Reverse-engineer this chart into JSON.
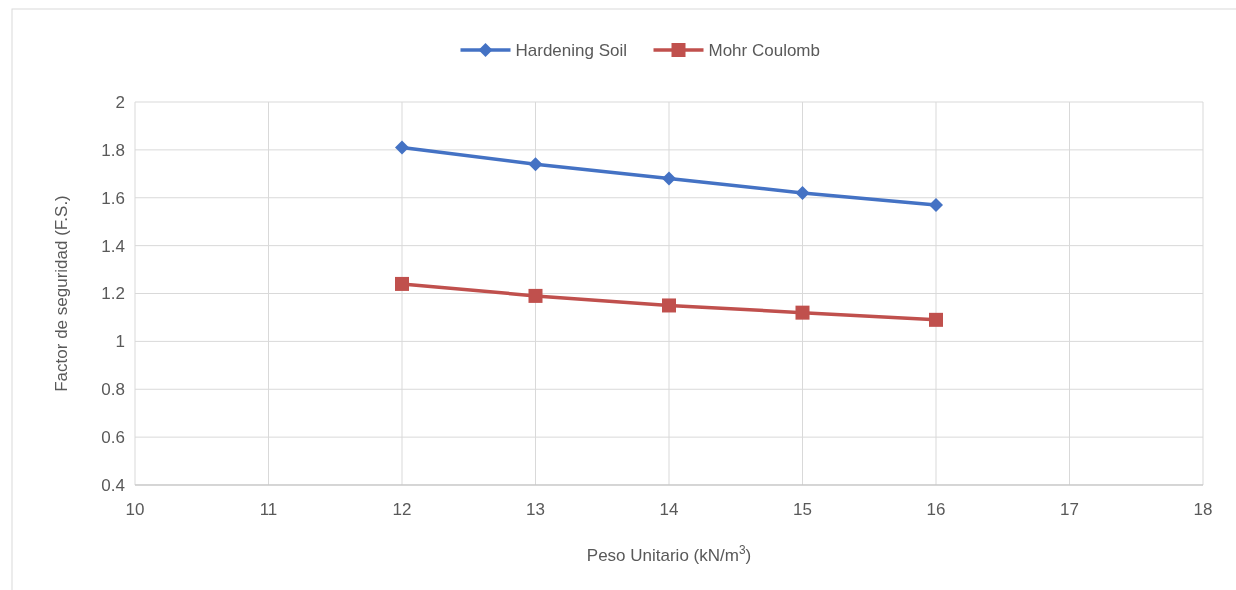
{
  "chart_data": {
    "type": "line",
    "xlabel": "Peso Unitario (kN/m$^{3}$)",
    "ylabel": "Factor de seguridad (F.S.)",
    "x": [
      12,
      13,
      14,
      15,
      16
    ],
    "series": [
      {
        "name": "Hardening Soil",
        "color": "#4472c4",
        "marker": "diamond",
        "values": [
          1.81,
          1.74,
          1.68,
          1.62,
          1.57
        ]
      },
      {
        "name": "Mohr Coulomb",
        "color": "#c0504d",
        "marker": "square",
        "values": [
          1.24,
          1.19,
          1.15,
          1.12,
          1.09
        ]
      }
    ],
    "xlim": [
      10,
      18
    ],
    "xticks": [
      10,
      11,
      12,
      13,
      14,
      15,
      16,
      17,
      18
    ],
    "ylim": [
      0.4,
      2
    ],
    "yticks": [
      0.4,
      0.6,
      0.8,
      1,
      1.2,
      1.4,
      1.6,
      1.8,
      2
    ],
    "grid": true,
    "legend": "top",
    "line_style": "solid"
  }
}
